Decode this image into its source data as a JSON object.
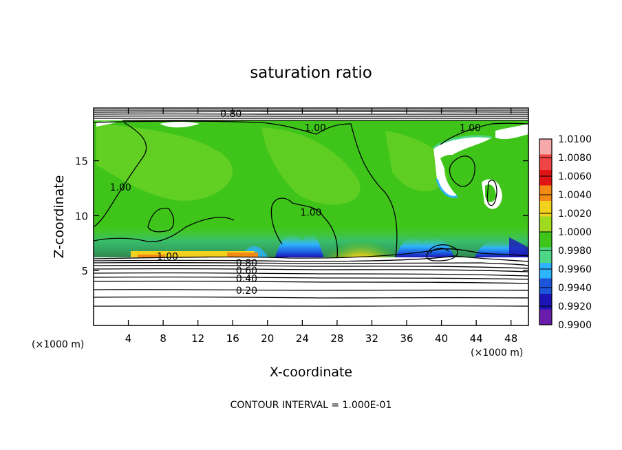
{
  "chart_data": {
    "type": "heatmap",
    "title": "saturation ratio",
    "xlabel": "X-coordinate",
    "ylabel": "Z-coordinate",
    "x_unit_left": "(×1000 m)",
    "x_unit_right": "(×1000 m)",
    "footer": "CONTOUR INTERVAL = 1.000E-01",
    "xlim": [
      0,
      50
    ],
    "ylim": [
      0,
      19.8
    ],
    "x_ticks": [
      4,
      8,
      12,
      16,
      20,
      24,
      28,
      32,
      36,
      40,
      44,
      48
    ],
    "y_ticks": [
      5,
      10,
      15
    ],
    "colorbar": {
      "levels": [
        "1.0100",
        "1.0080",
        "1.0060",
        "1.0040",
        "1.0020",
        "1.0000",
        "0.9980",
        "0.9960",
        "0.9940",
        "0.9920",
        "0.9900"
      ],
      "colors": [
        "#f7a8a8",
        "#f04545",
        "#e01414",
        "#f48a16",
        "#f2d21e",
        "#9fd920",
        "#3fc51a",
        "#4ed688",
        "#2eb4ff",
        "#1c55dc",
        "#1c14b4",
        "#6a1cac"
      ]
    },
    "contour_labels": [
      {
        "text": "0.80",
        "x": 15.8,
        "y": 19.3
      },
      {
        "text": "1.00",
        "x": 25.5,
        "y": 18.0
      },
      {
        "text": "1.00",
        "x": 43.3,
        "y": 18.0
      },
      {
        "text": "1.00",
        "x": 3.1,
        "y": 12.6
      },
      {
        "text": "1.00",
        "x": 25.0,
        "y": 10.3
      },
      {
        "text": "1.00",
        "x": 8.5,
        "y": 6.3
      },
      {
        "text": "0.80",
        "x": 17.6,
        "y": 5.7
      },
      {
        "text": "0.60",
        "x": 17.6,
        "y": 5.0
      },
      {
        "text": "0.40",
        "x": 17.6,
        "y": 4.3
      },
      {
        "text": "0.20",
        "x": 17.6,
        "y": 3.2
      }
    ]
  }
}
